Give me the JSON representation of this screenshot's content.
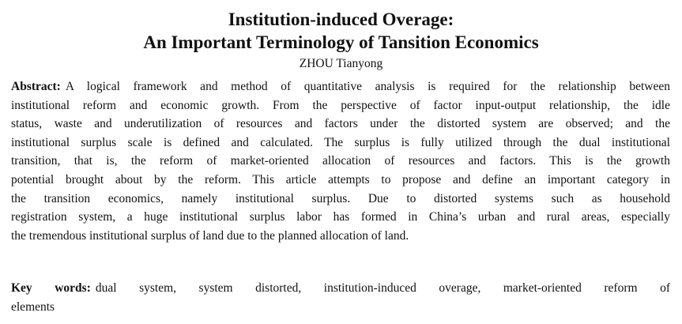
{
  "title": [
    "Institution-induced Overage:",
    "An Important Terminology of Tansition Economics"
  ],
  "author": "ZHOU Tianyong",
  "abstract": {
    "label": "Abstract:",
    "lines": [
      "A logical framework and method of quantitative analysis is required for the relationship between",
      "institutional reform and economic growth. From the perspective of factor input-output relationship, the idle",
      "status, waste and underutilization of resources and factors under the distorted system are observed; and the",
      "institutional surplus scale is defined and calculated. The surplus is fully utilized through the dual institutional",
      "transition, that is, the reform of market-oriented allocation of resources and factors. This is the growth",
      "potential brought about by the reform. This article attempts to propose and define an important category in",
      "the transition economics, namely institutional surplus. Due to distorted systems such as household",
      "registration system, a huge institutional surplus labor has formed in China’s urban and rural areas, especially",
      "the tremendous institutional surplus of land due to the planned allocation of land."
    ]
  },
  "keywords": {
    "label": "Key words:",
    "lines": [
      "dual system, system distorted, institution-induced overage, market-oriented reform of",
      "elements"
    ]
  }
}
